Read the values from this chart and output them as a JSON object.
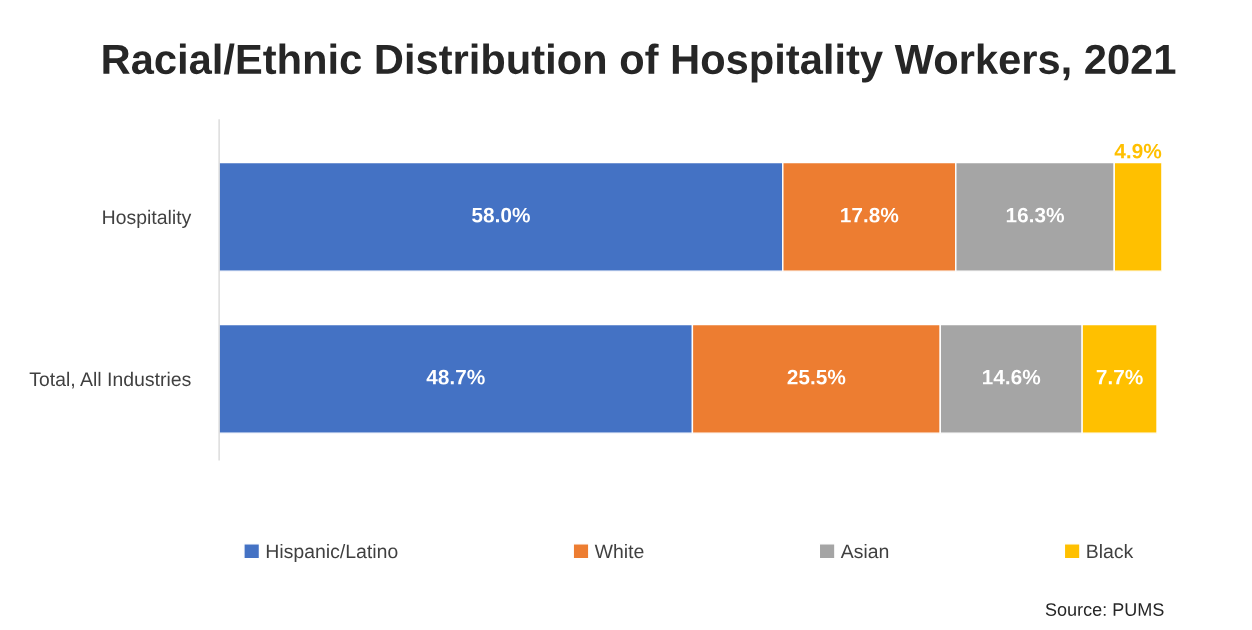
{
  "chart_data": {
    "type": "bar",
    "orientation": "horizontal",
    "stacked": true,
    "title": "Racial/Ethnic Distribution of Hospitality Workers, 2021",
    "categories": [
      "Hospitality",
      "Total, All Industries"
    ],
    "series": [
      {
        "name": "Hispanic/Latino",
        "color": "#4472c4",
        "values": [
          58.0,
          48.7
        ],
        "value_labels": [
          "58.0%",
          "48.7%"
        ]
      },
      {
        "name": "White",
        "color": "#ed7d31",
        "values": [
          17.8,
          25.5
        ],
        "value_labels": [
          "17.8%",
          "25.5%"
        ]
      },
      {
        "name": "Asian",
        "color": "#a5a5a5",
        "values": [
          16.3,
          14.6
        ],
        "value_labels": [
          "16.3%",
          "14.6%"
        ]
      },
      {
        "name": "Black",
        "color": "#ffc000",
        "values": [
          4.9,
          7.7
        ],
        "value_labels": [
          "4.9%",
          "7.7%"
        ]
      }
    ],
    "tick_labels": "y",
    "grid": false,
    "legend": "bottom",
    "annotations": [
      "Source: PUMS"
    ]
  }
}
